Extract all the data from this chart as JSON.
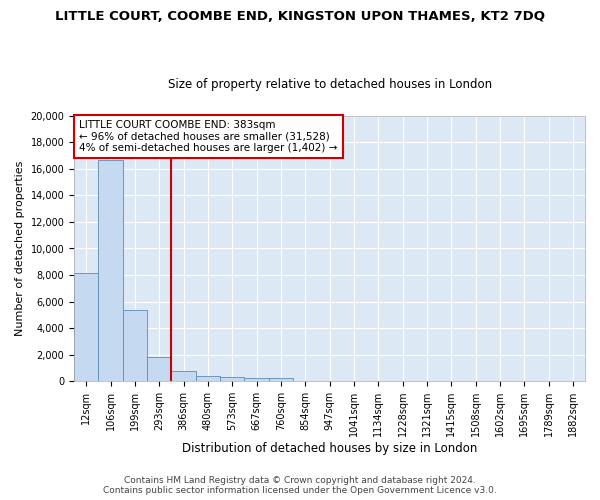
{
  "title": "LITTLE COURT, COOMBE END, KINGSTON UPON THAMES, KT2 7DQ",
  "subtitle": "Size of property relative to detached houses in London",
  "xlabel": "Distribution of detached houses by size in London",
  "ylabel": "Number of detached properties",
  "categories": [
    "12sqm",
    "106sqm",
    "199sqm",
    "293sqm",
    "386sqm",
    "480sqm",
    "573sqm",
    "667sqm",
    "760sqm",
    "854sqm",
    "947sqm",
    "1041sqm",
    "1134sqm",
    "1228sqm",
    "1321sqm",
    "1415sqm",
    "1508sqm",
    "1602sqm",
    "1695sqm",
    "1789sqm",
    "1882sqm"
  ],
  "values": [
    8150,
    16700,
    5350,
    1800,
    750,
    380,
    290,
    230,
    220,
    0,
    0,
    0,
    0,
    0,
    0,
    0,
    0,
    0,
    0,
    0,
    0
  ],
  "bar_color": "#c5d9f0",
  "bar_edge_color": "#5b8db8",
  "vline_x": 4,
  "vline_color": "#cc0000",
  "annotation_box_text": "LITTLE COURT COOMBE END: 383sqm\n← 96% of detached houses are smaller (31,528)\n4% of semi-detached houses are larger (1,402) →",
  "ylim": [
    0,
    20000
  ],
  "yticks": [
    0,
    2000,
    4000,
    6000,
    8000,
    10000,
    12000,
    14000,
    16000,
    18000,
    20000
  ],
  "footer_line1": "Contains HM Land Registry data © Crown copyright and database right 2024.",
  "footer_line2": "Contains public sector information licensed under the Open Government Licence v3.0.",
  "fig_bg_color": "#ffffff",
  "plot_bg_color": "#dce9f5",
  "grid_color": "#ffffff",
  "title_fontsize": 9.5,
  "subtitle_fontsize": 8.5,
  "axis_label_fontsize": 8,
  "tick_fontsize": 7,
  "annotation_fontsize": 7.5,
  "footer_fontsize": 6.5
}
